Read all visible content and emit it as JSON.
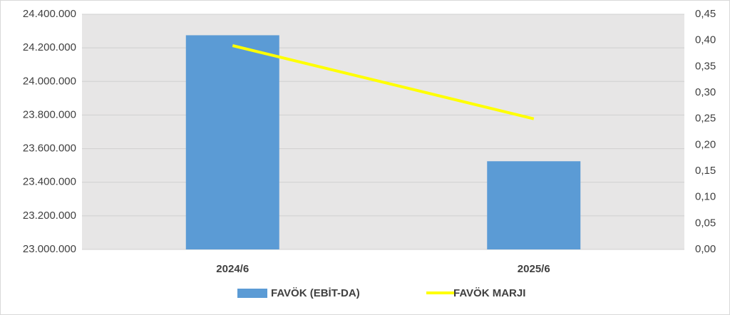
{
  "chart_data": {
    "type": "bar",
    "categories": [
      "2024/6",
      "2025/6"
    ],
    "series": [
      {
        "name": "FAVÖK (EBİT-DA)",
        "type": "bar",
        "color": "#5b9bd5",
        "values": [
          24275000,
          23525000
        ]
      },
      {
        "name": "FAVÖK MARJI",
        "type": "line",
        "color": "#ffff00",
        "axis": "y2",
        "values": [
          0.39,
          0.25
        ]
      }
    ],
    "ylim": [
      23000000,
      24400000
    ],
    "yticks": [
      {
        "value": 23000000,
        "label": "23.000.000"
      },
      {
        "value": 23200000,
        "label": "23.200.000"
      },
      {
        "value": 23400000,
        "label": "23.400.000"
      },
      {
        "value": 23600000,
        "label": "23.600.000"
      },
      {
        "value": 23800000,
        "label": "23.800.000"
      },
      {
        "value": 24000000,
        "label": "24.000.000"
      },
      {
        "value": 24200000,
        "label": "24.200.000"
      },
      {
        "value": 24400000,
        "label": "24.400.000"
      }
    ],
    "y2lim": [
      0,
      0.45
    ],
    "y2ticks": [
      {
        "value": 0,
        "label": "0,00"
      },
      {
        "value": 0.05,
        "label": "0,05"
      },
      {
        "value": 0.1,
        "label": "0,10"
      },
      {
        "value": 0.15,
        "label": "0,15"
      },
      {
        "value": 0.2,
        "label": "0,20"
      },
      {
        "value": 0.25,
        "label": "0,25"
      },
      {
        "value": 0.3,
        "label": "0,30"
      },
      {
        "value": 0.35,
        "label": "0,35"
      },
      {
        "value": 0.4,
        "label": "0,40"
      },
      {
        "value": 0.45,
        "label": "0,45"
      }
    ],
    "grid": true,
    "legend": "bottom"
  }
}
